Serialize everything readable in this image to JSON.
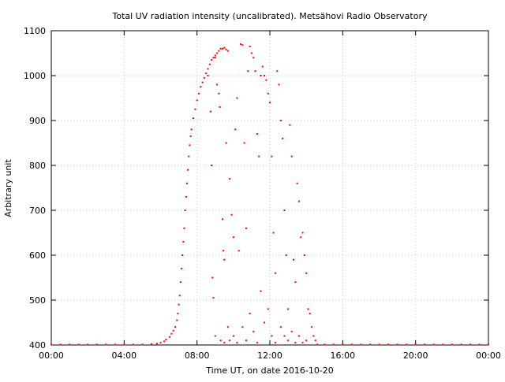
{
  "chart_data": {
    "type": "scatter",
    "title": "Total UV radiation intensity (uncalibrated). Metsähovi Radio Observatory",
    "xlabel": "Time UT, on date 2016-10-20",
    "ylabel": "Arbitrary unit",
    "xlim": [
      0,
      24
    ],
    "ylim": [
      400,
      1100
    ],
    "xticks": [
      {
        "value": 0,
        "label": "00:00"
      },
      {
        "value": 4,
        "label": "04:00"
      },
      {
        "value": 8,
        "label": "08:00"
      },
      {
        "value": 12,
        "label": "12:00"
      },
      {
        "value": 16,
        "label": "16:00"
      },
      {
        "value": 20,
        "label": "20:00"
      },
      {
        "value": 24,
        "label": "00:00"
      }
    ],
    "yticks": [
      {
        "value": 400,
        "label": "400"
      },
      {
        "value": 500,
        "label": "500"
      },
      {
        "value": 600,
        "label": "600"
      },
      {
        "value": 700,
        "label": "700"
      },
      {
        "value": 800,
        "label": "800"
      },
      {
        "value": 900,
        "label": "900"
      },
      {
        "value": 1000,
        "label": "1000"
      },
      {
        "value": 1100,
        "label": "1100"
      }
    ],
    "grid": true,
    "marker_color": "#ff0000",
    "series": [
      {
        "points": [
          [
            0.0,
            401
          ],
          [
            0.5,
            401
          ],
          [
            1.0,
            401
          ],
          [
            1.5,
            401
          ],
          [
            2.0,
            401
          ],
          [
            2.5,
            401
          ],
          [
            3.0,
            401
          ],
          [
            3.5,
            401
          ],
          [
            4.0,
            401
          ],
          [
            4.5,
            401
          ],
          [
            5.0,
            401
          ],
          [
            5.5,
            402
          ],
          [
            5.8,
            403
          ],
          [
            6.0,
            405
          ],
          [
            6.2,
            408
          ],
          [
            6.3,
            412
          ],
          [
            6.5,
            418
          ],
          [
            6.6,
            425
          ],
          [
            6.7,
            432
          ],
          [
            6.8,
            440
          ],
          [
            6.9,
            455
          ],
          [
            6.95,
            470
          ],
          [
            7.0,
            490
          ],
          [
            7.05,
            510
          ],
          [
            7.1,
            540
          ],
          [
            7.15,
            570
          ],
          [
            7.2,
            600
          ],
          [
            7.25,
            630
          ],
          [
            7.3,
            660
          ],
          [
            7.35,
            700
          ],
          [
            7.4,
            730
          ],
          [
            7.45,
            760
          ],
          [
            7.5,
            790
          ],
          [
            7.55,
            820
          ],
          [
            7.6,
            845
          ],
          [
            7.65,
            865
          ],
          [
            7.7,
            880
          ],
          [
            7.8,
            905
          ],
          [
            7.9,
            925
          ],
          [
            8.0,
            945
          ],
          [
            8.1,
            960
          ],
          [
            8.2,
            975
          ],
          [
            8.3,
            985
          ],
          [
            8.4,
            995
          ],
          [
            8.5,
            1005
          ],
          [
            8.6,
            1015
          ],
          [
            8.7,
            1025
          ],
          [
            8.8,
            1035
          ],
          [
            8.9,
            1040
          ],
          [
            9.0,
            1045
          ],
          [
            9.1,
            1050
          ],
          [
            9.2,
            1055
          ],
          [
            9.3,
            1060
          ],
          [
            9.4,
            1060
          ],
          [
            9.5,
            1062
          ],
          [
            9.6,
            1058
          ],
          [
            9.7,
            1055
          ],
          [
            8.6,
            1000
          ],
          [
            8.75,
            920
          ],
          [
            8.8,
            800
          ],
          [
            8.85,
            550
          ],
          [
            8.9,
            505
          ],
          [
            9.0,
            1040
          ],
          [
            9.1,
            980
          ],
          [
            9.2,
            960
          ],
          [
            9.25,
            930
          ],
          [
            9.4,
            680
          ],
          [
            9.45,
            610
          ],
          [
            9.5,
            590
          ],
          [
            9.6,
            850
          ],
          [
            9.7,
            440
          ],
          [
            9.8,
            770
          ],
          [
            9.9,
            690
          ],
          [
            10.0,
            640
          ],
          [
            10.1,
            880
          ],
          [
            10.2,
            950
          ],
          [
            10.3,
            610
          ],
          [
            10.4,
            1070
          ],
          [
            10.5,
            1068
          ],
          [
            10.6,
            850
          ],
          [
            10.7,
            660
          ],
          [
            10.8,
            1010
          ],
          [
            10.9,
            1065
          ],
          [
            11.0,
            1050
          ],
          [
            11.1,
            1040
          ],
          [
            11.2,
            1010
          ],
          [
            11.3,
            870
          ],
          [
            11.4,
            820
          ],
          [
            11.5,
            1000
          ],
          [
            11.6,
            1020
          ],
          [
            11.7,
            1000
          ],
          [
            11.8,
            990
          ],
          [
            11.9,
            960
          ],
          [
            12.0,
            940
          ],
          [
            12.1,
            820
          ],
          [
            12.2,
            650
          ],
          [
            12.3,
            560
          ],
          [
            12.4,
            1010
          ],
          [
            12.5,
            980
          ],
          [
            12.6,
            900
          ],
          [
            12.7,
            860
          ],
          [
            12.8,
            700
          ],
          [
            12.9,
            600
          ],
          [
            13.0,
            480
          ],
          [
            13.1,
            890
          ],
          [
            13.2,
            820
          ],
          [
            13.3,
            590
          ],
          [
            13.4,
            540
          ],
          [
            13.5,
            760
          ],
          [
            13.6,
            720
          ],
          [
            13.7,
            640
          ],
          [
            13.8,
            650
          ],
          [
            13.9,
            600
          ],
          [
            14.0,
            560
          ],
          [
            14.1,
            480
          ],
          [
            14.2,
            470
          ],
          [
            14.3,
            440
          ],
          [
            14.4,
            420
          ],
          [
            14.5,
            410
          ],
          [
            9.0,
            420
          ],
          [
            9.3,
            410
          ],
          [
            9.5,
            405
          ],
          [
            9.8,
            410
          ],
          [
            10.0,
            420
          ],
          [
            10.2,
            405
          ],
          [
            10.5,
            440
          ],
          [
            10.7,
            410
          ],
          [
            10.9,
            470
          ],
          [
            11.1,
            430
          ],
          [
            11.3,
            405
          ],
          [
            11.5,
            520
          ],
          [
            11.7,
            450
          ],
          [
            11.9,
            480
          ],
          [
            12.1,
            420
          ],
          [
            12.3,
            405
          ],
          [
            12.6,
            440
          ],
          [
            12.8,
            420
          ],
          [
            13.0,
            410
          ],
          [
            13.2,
            430
          ],
          [
            13.4,
            405
          ],
          [
            13.6,
            420
          ],
          [
            13.8,
            405
          ],
          [
            14.0,
            410
          ],
          [
            14.6,
            401
          ],
          [
            15.0,
            401
          ],
          [
            15.5,
            401
          ],
          [
            16.0,
            401
          ],
          [
            16.5,
            401
          ],
          [
            17.0,
            401
          ],
          [
            17.5,
            401
          ],
          [
            18.0,
            401
          ],
          [
            18.5,
            401
          ],
          [
            19.0,
            401
          ],
          [
            19.5,
            401
          ],
          [
            20.0,
            401
          ],
          [
            20.5,
            401
          ],
          [
            21.0,
            401
          ],
          [
            21.5,
            401
          ],
          [
            22.0,
            401
          ],
          [
            22.5,
            401
          ],
          [
            23.0,
            401
          ],
          [
            23.5,
            401
          ],
          [
            24.0,
            401
          ]
        ]
      }
    ]
  }
}
